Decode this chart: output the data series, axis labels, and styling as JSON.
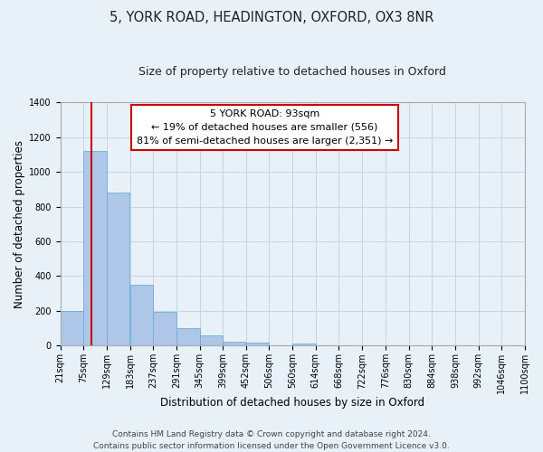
{
  "title": "5, YORK ROAD, HEADINGTON, OXFORD, OX3 8NR",
  "subtitle": "Size of property relative to detached houses in Oxford",
  "xlabel": "Distribution of detached houses by size in Oxford",
  "ylabel": "Number of detached properties",
  "bin_labels": [
    "21sqm",
    "75sqm",
    "129sqm",
    "183sqm",
    "237sqm",
    "291sqm",
    "345sqm",
    "399sqm",
    "452sqm",
    "506sqm",
    "560sqm",
    "614sqm",
    "668sqm",
    "722sqm",
    "776sqm",
    "830sqm",
    "884sqm",
    "938sqm",
    "992sqm",
    "1046sqm",
    "1100sqm"
  ],
  "bar_heights": [
    200,
    1120,
    880,
    350,
    195,
    100,
    57,
    25,
    18,
    0,
    12,
    0,
    0,
    0,
    0,
    0,
    0,
    0,
    0,
    0
  ],
  "bin_edges": [
    21,
    75,
    129,
    183,
    237,
    291,
    345,
    399,
    452,
    506,
    560,
    614,
    668,
    722,
    776,
    830,
    884,
    938,
    992,
    1046,
    1100
  ],
  "bar_color": "#aec6e8",
  "bar_edge_color": "#6baed6",
  "property_size": 93,
  "marker_line_color": "#cc0000",
  "annotation_line1": "5 YORK ROAD: 93sqm",
  "annotation_line2": "← 19% of detached houses are smaller (556)",
  "annotation_line3": "81% of semi-detached houses are larger (2,351) →",
  "annotation_box_color": "#ffffff",
  "annotation_box_edge": "#cc0000",
  "ylim": [
    0,
    1400
  ],
  "yticks": [
    0,
    200,
    400,
    600,
    800,
    1000,
    1200,
    1400
  ],
  "footer_line1": "Contains HM Land Registry data © Crown copyright and database right 2024.",
  "footer_line2": "Contains public sector information licensed under the Open Government Licence v3.0.",
  "bg_color": "#e8f0f8",
  "plot_bg_color": "#e8f0f8",
  "grid_color": "#c8d4e0",
  "title_fontsize": 10.5,
  "subtitle_fontsize": 9,
  "axis_label_fontsize": 8.5,
  "tick_fontsize": 7,
  "annotation_fontsize": 8,
  "footer_fontsize": 6.5
}
